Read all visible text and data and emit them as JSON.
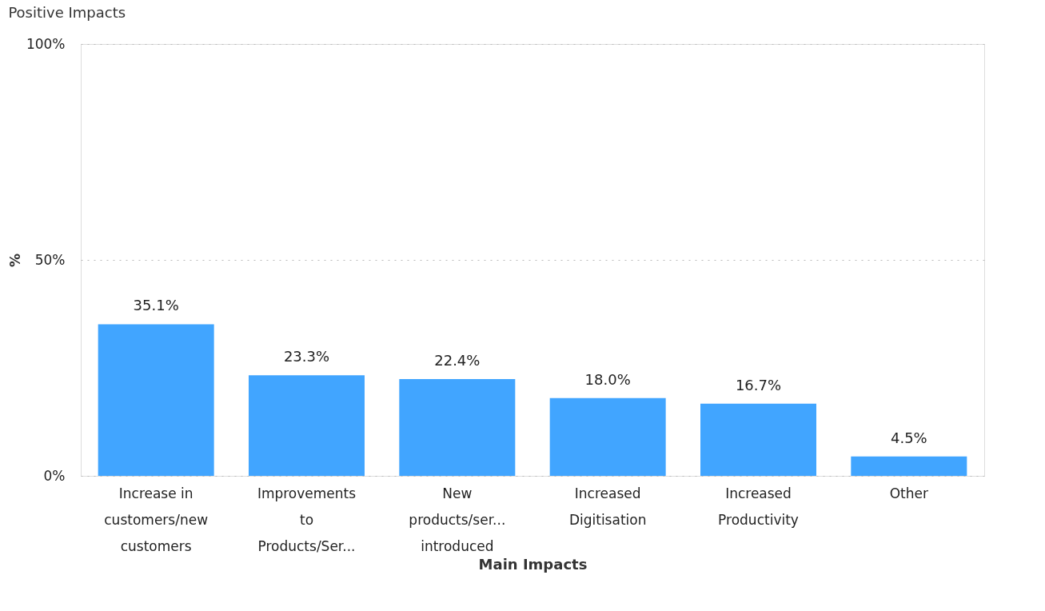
{
  "chart_data": {
    "type": "bar",
    "title": "Positive Impacts",
    "xlabel": "Main Impacts",
    "ylabel": "%",
    "categories": [
      "Increase in customers/new customers",
      "Improvements to Products/Ser...",
      "New products/ser... introduced",
      "Increased Digitisation",
      "Increased Productivity",
      "Other"
    ],
    "values": [
      35.1,
      23.3,
      22.4,
      18.0,
      16.7,
      4.5
    ],
    "color": "#41a5ff",
    "ylim": [
      0,
      100
    ],
    "yticks": [
      {
        "value": 0,
        "label": "0%"
      },
      {
        "value": 50,
        "label": "50%"
      },
      {
        "value": 100,
        "label": "100%"
      }
    ],
    "grid": "y",
    "data_labels": true,
    "value_labels": [
      "35.1%",
      "23.3%",
      "22.4%",
      "18.0%",
      "16.7%",
      "4.5%"
    ]
  }
}
